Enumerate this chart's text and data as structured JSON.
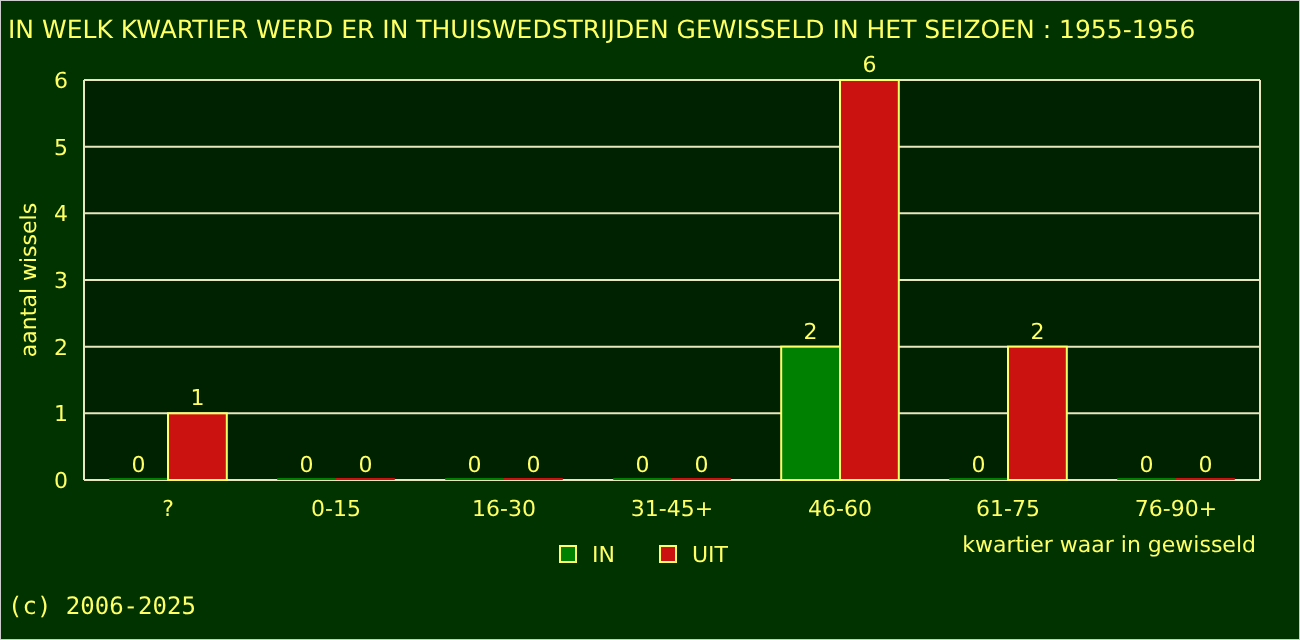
{
  "chart_data": {
    "type": "bar",
    "title": "IN WELK KWARTIER WERD ER IN THUISWEDSTRIJDEN GEWISSELD IN HET SEIZOEN : 1955-1956",
    "xlabel": "kwartier waar in gewisseld",
    "ylabel": "aantal wissels",
    "categories": [
      "?",
      "0-15",
      "16-30",
      "31-45+",
      "46-60",
      "61-75",
      "76-90+"
    ],
    "series": [
      {
        "name": "IN",
        "color": "#008000",
        "values": [
          0,
          0,
          0,
          0,
          2,
          0,
          0
        ]
      },
      {
        "name": "UIT",
        "color": "#cc1111",
        "values": [
          1,
          0,
          0,
          0,
          6,
          2,
          0
        ]
      }
    ],
    "ylim": [
      0,
      6
    ],
    "yticks": [
      0,
      1,
      2,
      3,
      4,
      5,
      6
    ],
    "grid": "y",
    "legend": "bottom",
    "data_labels": true,
    "annotations": [
      "(c) 2006-2025"
    ]
  }
}
